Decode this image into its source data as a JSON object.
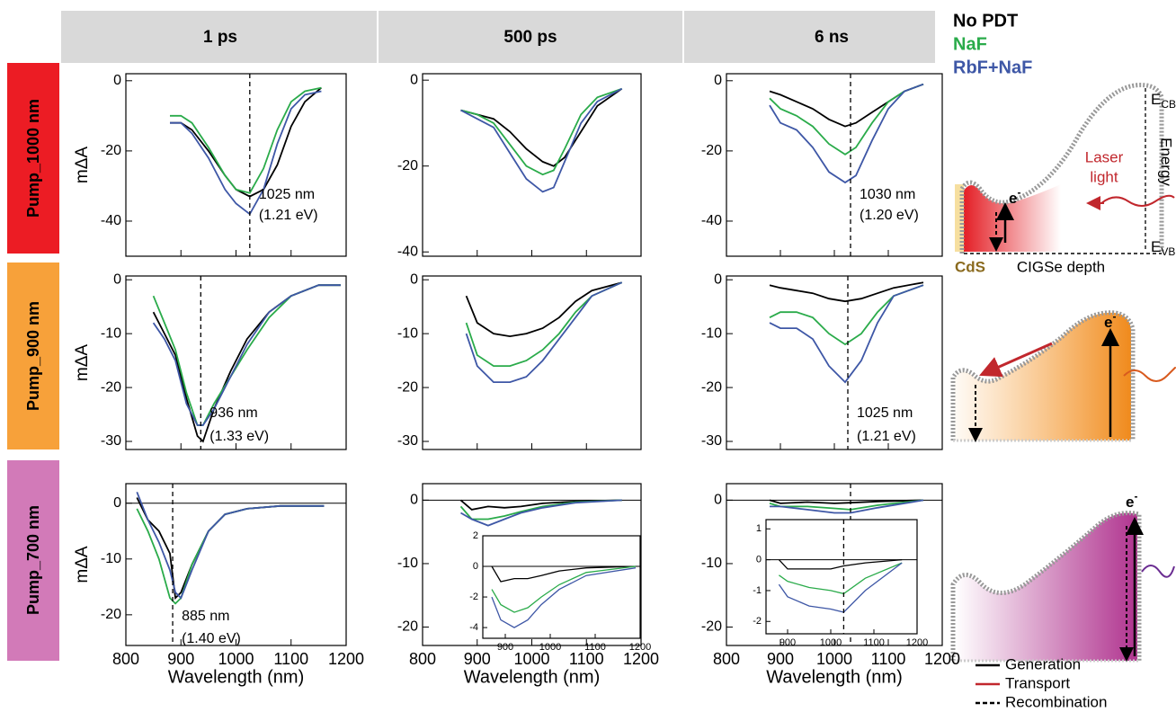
{
  "column_headers": [
    "1 ps",
    "500 ps",
    "6 ns"
  ],
  "row_labels": [
    "Pump_1000 nm",
    "Pump_900 nm",
    "Pump_700 nm"
  ],
  "legend": [
    {
      "name": "No PDT",
      "color": "#000000"
    },
    {
      "name": "NaF",
      "color": "#2aab4a"
    },
    {
      "name": "RbF+NaF",
      "color": "#3e57a6"
    }
  ],
  "schematic": {
    "electron": {
      "base": "e",
      "sup": "-"
    },
    "e_cb": {
      "base": "E",
      "sub": "CB"
    },
    "e_vb": {
      "base": "E",
      "sub": "VB"
    },
    "energy": "Energy",
    "laser": [
      "Laser",
      "light"
    ],
    "depth": "CIGSe depth",
    "cds": "CdS",
    "key": [
      "Generation",
      "Transport",
      "Recombination"
    ]
  },
  "chart_data": [
    {
      "type": "line",
      "ylabel": "mΔA",
      "x": [
        880,
        900,
        920,
        950,
        980,
        1000,
        1025,
        1050,
        1075,
        1100,
        1125,
        1155
      ],
      "series": [
        {
          "values": [
            -12,
            -12,
            -14,
            -20,
            -27,
            -31,
            -33,
            -31,
            -24,
            -13,
            -6,
            -2
          ]
        },
        {
          "values": [
            -10,
            -10,
            -12,
            -19,
            -27,
            -31,
            -32,
            -25,
            -14,
            -6,
            -3,
            -2
          ]
        },
        {
          "values": [
            -12,
            -12,
            -15,
            -22,
            -31,
            -35,
            -38,
            -31,
            -18,
            -8,
            -4,
            -3
          ]
        }
      ],
      "xlim": [
        800,
        1200
      ],
      "ylim": [
        -50,
        2
      ],
      "xticks": [
        800,
        900,
        1000,
        1100,
        1200
      ],
      "yticks": [
        0,
        -20,
        -40
      ],
      "marker_x": 1025,
      "annotation": [
        "1025 nm",
        "(1.21 eV)"
      ]
    },
    {
      "type": "line",
      "x": [
        870,
        900,
        930,
        960,
        990,
        1020,
        1040,
        1060,
        1090,
        1120,
        1165
      ],
      "series": [
        {
          "values": [
            -7,
            -8,
            -9,
            -12,
            -16,
            -19,
            -20,
            -18,
            -12,
            -6,
            -2
          ]
        },
        {
          "values": [
            -7,
            -8,
            -10,
            -15,
            -20,
            -22,
            -21,
            -16,
            -8,
            -4,
            -2
          ]
        },
        {
          "values": [
            -7,
            -9,
            -11,
            -17,
            -23,
            -26,
            -25,
            -19,
            -10,
            -5,
            -2
          ]
        }
      ],
      "xlim": [
        800,
        1200
      ],
      "ylim": [
        -41,
        1.5
      ],
      "xticks": [
        800,
        900,
        1000,
        1100,
        1200
      ],
      "yticks": [
        0,
        -20,
        -40
      ]
    },
    {
      "type": "line",
      "x": [
        880,
        900,
        930,
        960,
        990,
        1020,
        1040,
        1070,
        1100,
        1130,
        1165
      ],
      "series": [
        {
          "values": [
            -3,
            -4,
            -6,
            -8,
            -11,
            -13,
            -12,
            -9,
            -6,
            -3,
            -1
          ]
        },
        {
          "values": [
            -5,
            -8,
            -10,
            -13,
            -18,
            -21,
            -19,
            -12,
            -6,
            -3,
            -1
          ]
        },
        {
          "values": [
            -7,
            -12,
            -14,
            -19,
            -26,
            -29,
            -27,
            -17,
            -8,
            -3,
            -1
          ]
        }
      ],
      "xlim": [
        800,
        1200
      ],
      "ylim": [
        -50,
        2
      ],
      "xticks": [
        800,
        900,
        1000,
        1100,
        1200
      ],
      "yticks": [
        0,
        -20,
        -40
      ],
      "marker_x": 1030,
      "annotation": [
        "1030 nm",
        "(1.20 eV)"
      ]
    },
    {
      "type": "line",
      "ylabel": "mΔA",
      "x": [
        850,
        870,
        890,
        910,
        930,
        940,
        960,
        990,
        1020,
        1060,
        1100,
        1150,
        1190
      ],
      "series": [
        {
          "values": [
            -6,
            -10,
            -14,
            -22,
            -29,
            -30,
            -24,
            -17,
            -11,
            -6,
            -3,
            -1,
            -1
          ]
        },
        {
          "values": [
            -3,
            -8,
            -13,
            -21,
            -27,
            -27,
            -23,
            -18,
            -13,
            -7,
            -3,
            -1,
            -1
          ]
        },
        {
          "values": [
            -8,
            -11,
            -15,
            -23,
            -27,
            -27,
            -24,
            -18,
            -12,
            -6,
            -3,
            -1,
            -1
          ]
        }
      ],
      "xlim": [
        800,
        1200
      ],
      "ylim": [
        -31.5,
        0.7
      ],
      "xticks": [
        800,
        900,
        1000,
        1100,
        1200
      ],
      "yticks": [
        0,
        -10,
        -20,
        -30
      ],
      "marker_x": 936,
      "annotation": [
        "936 nm",
        "(1.33 eV)"
      ]
    },
    {
      "type": "line",
      "x": [
        880,
        900,
        930,
        960,
        990,
        1020,
        1050,
        1080,
        1110,
        1165
      ],
      "series": [
        {
          "values": [
            -3,
            -8,
            -10,
            -10.5,
            -10,
            -9,
            -7,
            -4,
            -2,
            -0.5
          ]
        },
        {
          "values": [
            -8,
            -14,
            -16,
            -16,
            -15,
            -13,
            -10,
            -6,
            -3,
            -0.5
          ]
        },
        {
          "values": [
            -10,
            -16,
            -19,
            -19,
            -18,
            -15,
            -11,
            -7,
            -3,
            -0.5
          ]
        }
      ],
      "xlim": [
        800,
        1200
      ],
      "ylim": [
        -31.5,
        0.7
      ],
      "xticks": [
        800,
        900,
        1000,
        1100,
        1200
      ],
      "yticks": [
        0,
        -10,
        -20,
        -30
      ]
    },
    {
      "type": "line",
      "x": [
        880,
        900,
        930,
        960,
        990,
        1020,
        1050,
        1080,
        1110,
        1165
      ],
      "series": [
        {
          "values": [
            -1,
            -1.5,
            -2,
            -2.5,
            -3.5,
            -4,
            -3.5,
            -2.5,
            -1.5,
            -0.5
          ]
        },
        {
          "values": [
            -7,
            -6,
            -6,
            -7,
            -10,
            -12,
            -10,
            -6,
            -3,
            -1
          ]
        },
        {
          "values": [
            -8,
            -9,
            -9,
            -11,
            -16,
            -19,
            -15,
            -8,
            -3,
            -1
          ]
        }
      ],
      "xlim": [
        800,
        1200
      ],
      "ylim": [
        -31.5,
        0.7
      ],
      "xticks": [
        800,
        900,
        1000,
        1100,
        1200
      ],
      "yticks": [
        0,
        -10,
        -20,
        -30
      ],
      "marker_x": 1025,
      "annotation": [
        "1025 nm",
        "(1.21 eV)"
      ]
    },
    {
      "type": "line",
      "ylabel": "mΔA",
      "xlabel": "Wavelength (nm)",
      "zero_line": true,
      "x": [
        820,
        840,
        860,
        880,
        890,
        900,
        920,
        950,
        980,
        1020,
        1080,
        1160
      ],
      "series": [
        {
          "values": [
            1,
            -3,
            -5,
            -9,
            -17,
            -16,
            -11,
            -5,
            -2,
            -1,
            -0.5,
            -0.5
          ]
        },
        {
          "values": [
            -1,
            -5,
            -10,
            -17,
            -18,
            -17,
            -11,
            -5,
            -2,
            -1,
            -0.5,
            -0.5
          ]
        },
        {
          "values": [
            2,
            -3,
            -7,
            -12,
            -16,
            -17,
            -12,
            -5,
            -2,
            -1,
            -0.5,
            -0.5
          ]
        }
      ],
      "xlim": [
        800,
        1200
      ],
      "ylim": [
        -25.5,
        3.5
      ],
      "xticks": [
        800,
        900,
        1000,
        1100,
        1200
      ],
      "yticks": [
        0,
        -10,
        -20
      ],
      "marker_x": 885,
      "annotation": [
        "885 nm",
        "(1.40 eV)"
      ]
    },
    {
      "type": "line",
      "xlabel": "Wavelength (nm)",
      "zero_line": true,
      "x": [
        870,
        890,
        920,
        950,
        980,
        1020,
        1080,
        1165
      ],
      "series": [
        {
          "values": [
            0,
            -1.5,
            -1,
            -1.2,
            -1,
            -0.5,
            -0.2,
            0
          ]
        },
        {
          "values": [
            -1,
            -3,
            -3,
            -2.5,
            -1.8,
            -1,
            -0.3,
            0
          ]
        },
        {
          "values": [
            -2,
            -3,
            -4,
            -3,
            -2,
            -1.2,
            -0.4,
            0
          ]
        }
      ],
      "xlim": [
        800,
        1200
      ],
      "ylim": [
        -22.9,
        2.6
      ],
      "xticks": [
        800,
        900,
        1000,
        1100,
        1200
      ],
      "yticks": [
        0,
        -10,
        -20
      ],
      "inset": {
        "zero_line": true,
        "x": [
          870,
          890,
          920,
          950,
          980,
          1020,
          1080,
          1190
        ],
        "series": [
          {
            "values": [
              0,
              -1,
              -0.8,
              -0.8,
              -0.6,
              -0.3,
              -0.1,
              0
            ]
          },
          {
            "values": [
              -1.5,
              -2.5,
              -3,
              -2.7,
              -2,
              -1.2,
              -0.4,
              0
            ]
          },
          {
            "values": [
              -2,
              -3.5,
              -4,
              -3.5,
              -2.5,
              -1.5,
              -0.6,
              -0.1
            ]
          }
        ],
        "xlim": [
          850,
          1200
        ],
        "ylim": [
          -4.7,
          2
        ],
        "xticks": [
          900,
          1000,
          1100,
          1200
        ],
        "yticks": [
          -4,
          -2,
          0,
          2
        ]
      }
    },
    {
      "type": "line",
      "xlabel": "Wavelength (nm)",
      "zero_line": true,
      "x": [
        880,
        900,
        950,
        1000,
        1030,
        1080,
        1165
      ],
      "series": [
        {
          "values": [
            0,
            -0.5,
            -0.3,
            -0.5,
            -0.4,
            -0.2,
            0
          ]
        },
        {
          "values": [
            -0.5,
            -1,
            -1,
            -1.3,
            -1.5,
            -0.8,
            0
          ]
        },
        {
          "values": [
            -1,
            -1,
            -1.5,
            -2,
            -2,
            -1.2,
            0
          ]
        }
      ],
      "xlim": [
        800,
        1200
      ],
      "ylim": [
        -22.9,
        2.6
      ],
      "xticks": [
        800,
        900,
        1000,
        1100,
        1200
      ],
      "yticks": [
        0,
        -10,
        -20
      ],
      "marker_x": 1030,
      "inset": {
        "zero_line": true,
        "marker_x": 1030,
        "x": [
          880,
          900,
          950,
          1000,
          1030,
          1080,
          1165
        ],
        "series": [
          {
            "values": [
              0,
              -0.3,
              -0.3,
              -0.3,
              -0.2,
              -0.1,
              0
            ]
          },
          {
            "values": [
              -0.5,
              -0.7,
              -0.9,
              -1.0,
              -1.1,
              -0.6,
              -0.1
            ]
          },
          {
            "values": [
              -0.8,
              -1.2,
              -1.5,
              -1.6,
              -1.7,
              -1.0,
              -0.1
            ]
          }
        ],
        "xlim": [
          850,
          1200
        ],
        "ylim": [
          -2.4,
          1.3
        ],
        "xticks": [
          900,
          1000,
          1100,
          1200
        ],
        "yticks": [
          -2,
          -1,
          0,
          1
        ]
      }
    }
  ]
}
